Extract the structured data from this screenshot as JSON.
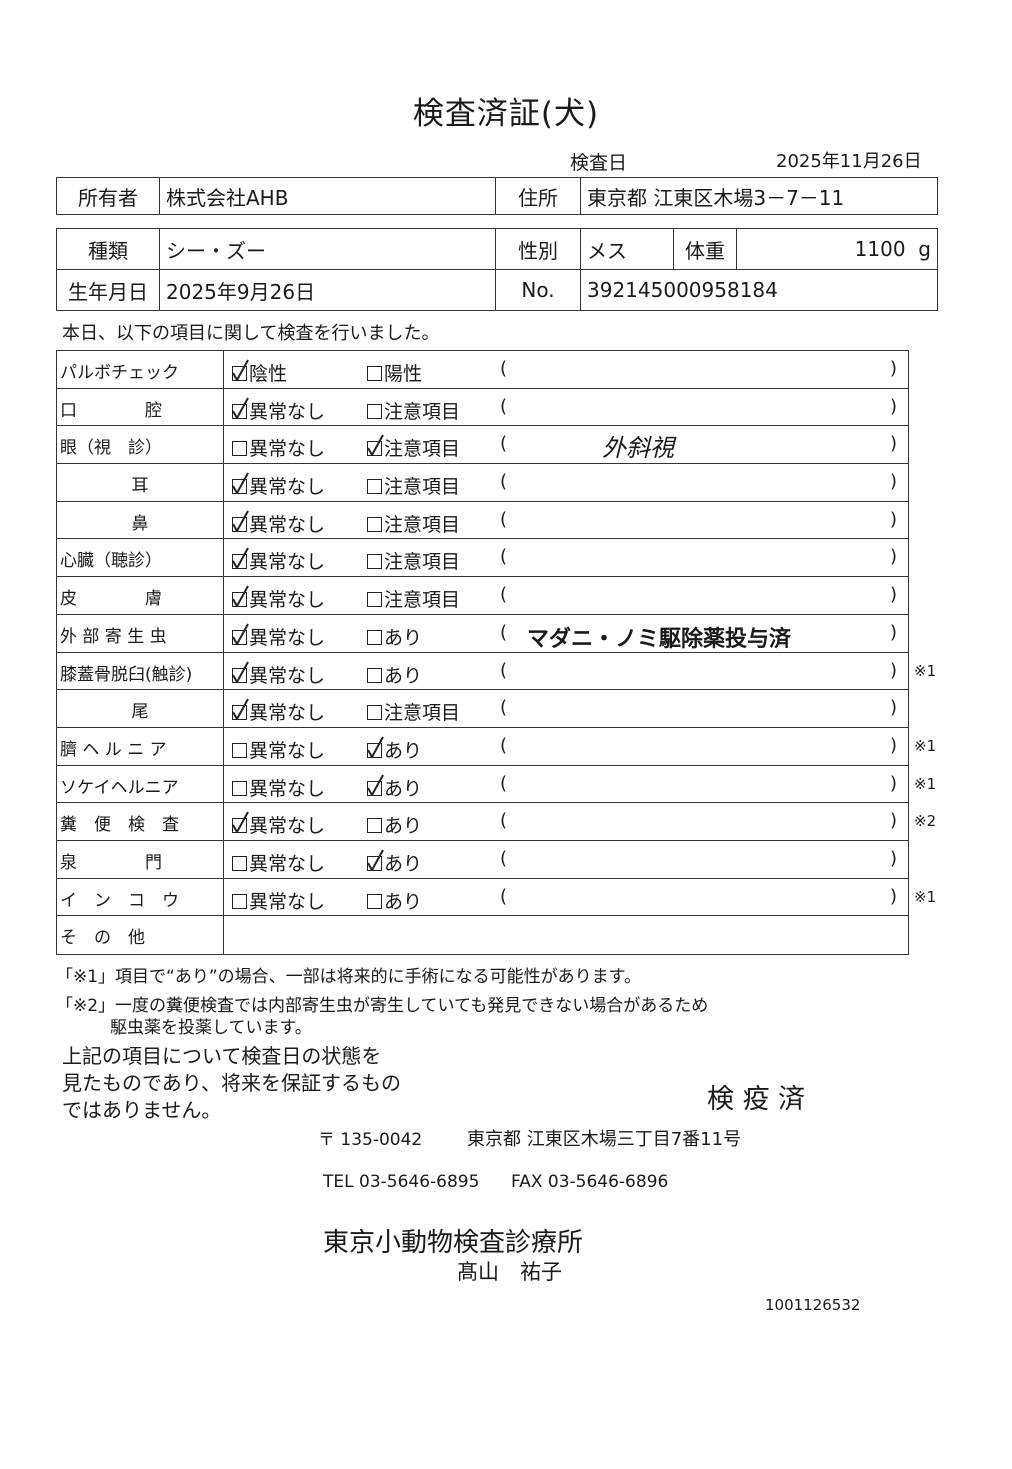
{
  "title": "検査済証(犬)",
  "exam_date_label": "検査日",
  "exam_date": "2025年11月26日",
  "owner": {
    "label": "所有者",
    "value": "株式会社AHB",
    "address_label": "住所",
    "address": "東京都 江東区木場3－7－11"
  },
  "pet": {
    "breed_label": "種類",
    "breed": "シー・ズー",
    "sex_label": "性別",
    "sex": "メス",
    "weight_label": "体重",
    "weight": "1100",
    "weight_unit": "g",
    "birth_label": "生年月日",
    "birth": "2025年9月26日",
    "no_label": "No.",
    "no": "392145000958184"
  },
  "intro": "本日、以下の項目に関して検査を行いました。",
  "paren_open": "(",
  "paren_close": ")",
  "items": [
    {
      "label": "パルボチェック",
      "opt1": "陰性",
      "opt2": "陽性",
      "checked": 1,
      "remark": "",
      "note": ""
    },
    {
      "label": "口　　　　腔",
      "opt1": "異常なし",
      "opt2": "注意項目",
      "checked": 1,
      "remark": "",
      "note": ""
    },
    {
      "label": "眼（視　診）",
      "opt1": "異常なし",
      "opt2": "注意項目",
      "checked": 2,
      "remark": "外斜視",
      "note": ""
    },
    {
      "label": "耳",
      "opt1": "異常なし",
      "opt2": "注意項目",
      "checked": 1,
      "remark": "",
      "note": ""
    },
    {
      "label": "鼻",
      "opt1": "異常なし",
      "opt2": "注意項目",
      "checked": 1,
      "remark": "",
      "note": ""
    },
    {
      "label": "心臓（聴診）",
      "opt1": "異常なし",
      "opt2": "注意項目",
      "checked": 1,
      "remark": "",
      "note": ""
    },
    {
      "label": "皮　　　　膚",
      "opt1": "異常なし",
      "opt2": "注意項目",
      "checked": 1,
      "remark": "",
      "note": ""
    },
    {
      "label": "外 部 寄 生 虫",
      "opt1": "異常なし",
      "opt2": "あり",
      "checked": 1,
      "remark": "マダニ・ノミ駆除薬投与済",
      "note": ""
    },
    {
      "label": "膝蓋骨脱臼(触診)",
      "opt1": "異常なし",
      "opt2": "あり",
      "checked": 1,
      "remark": "",
      "note": "※1"
    },
    {
      "label": "尾",
      "opt1": "異常なし",
      "opt2": "注意項目",
      "checked": 1,
      "remark": "",
      "note": ""
    },
    {
      "label": "臍 ヘ ル ニ ア",
      "opt1": "異常なし",
      "opt2": "あり",
      "checked": 2,
      "remark": "",
      "note": "※1"
    },
    {
      "label": "ソケイヘルニア",
      "opt1": "異常なし",
      "opt2": "あり",
      "checked": 2,
      "remark": "",
      "note": "※1"
    },
    {
      "label": "糞　便　検　査",
      "opt1": "異常なし",
      "opt2": "あり",
      "checked": 1,
      "remark": "",
      "note": "※2"
    },
    {
      "label": "泉　　　　門",
      "opt1": "異常なし",
      "opt2": "あり",
      "checked": 2,
      "remark": "",
      "note": ""
    },
    {
      "label": "イ　ン　コ　ウ",
      "opt1": "異常なし",
      "opt2": "あり",
      "checked": 0,
      "remark": "",
      "note": "※1"
    }
  ],
  "other_label": "そ　の　他",
  "footnote1": "「※1」項目で“あり”の場合、一部は将来的に手術になる可能性があります。",
  "footnote2a": "「※2」一度の糞便検査では内部寄生虫が寄生していても発見できない場合があるため",
  "footnote2b": "駆虫薬を投薬しています。",
  "disclaimer": [
    "上記の項目について検査日の状態を",
    "見たものであり、将来を保証するもの",
    "ではありません。"
  ],
  "stamp": "検 疫 済",
  "postal": "〒 135-0042",
  "address": "東京都 江東区木場三丁目7番11号",
  "tel": "TEL 03-5646-6895",
  "fax": "FAX 03-5646-6896",
  "clinic": "東京小動物検査診療所",
  "doctor": "髙山　祐子",
  "serial": "1001126532"
}
